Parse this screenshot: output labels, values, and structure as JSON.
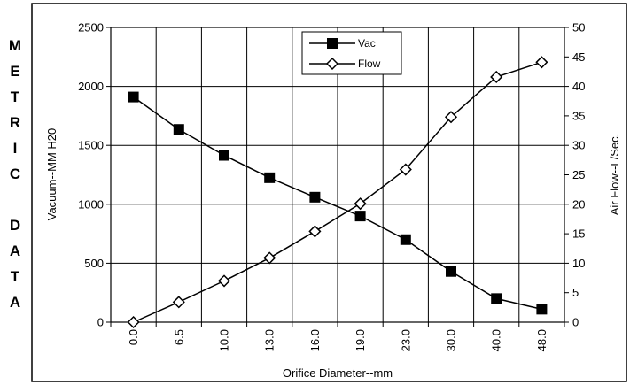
{
  "side_label": [
    "M",
    "E",
    "T",
    "R",
    "I",
    "C",
    "",
    "D",
    "A",
    "T",
    "A"
  ],
  "chart_data": {
    "type": "line",
    "categories": [
      "0.0",
      "6.5",
      "10.0",
      "13.0",
      "16.0",
      "19.0",
      "23.0",
      "30.0",
      "40.0",
      "48.0"
    ],
    "xlabel": "Orifice Diameter--mm",
    "ylabel_left": "Vacuum--MM H20",
    "ylabel_right": "Air Flow--L/Sec.",
    "ylim_left": [
      0,
      2500
    ],
    "ylim_right": [
      0,
      50
    ],
    "yticks_left": [
      "0",
      "500",
      "1000",
      "1500",
      "2000",
      "2500"
    ],
    "yticks_right": [
      "0",
      "5",
      "10",
      "15",
      "20",
      "25",
      "30",
      "35",
      "40",
      "45",
      "50"
    ],
    "grid": true,
    "legend_position": "top-center",
    "series": [
      {
        "name": "Vac",
        "axis": "left",
        "marker": "filled-square",
        "values": [
          1910,
          1635,
          1415,
          1225,
          1060,
          900,
          700,
          430,
          200,
          110
        ]
      },
      {
        "name": "Flow",
        "axis": "right",
        "marker": "open-diamond",
        "values": [
          0,
          3.4,
          7.0,
          10.9,
          15.4,
          20.1,
          25.9,
          34.8,
          41.6,
          44.1
        ]
      }
    ]
  }
}
